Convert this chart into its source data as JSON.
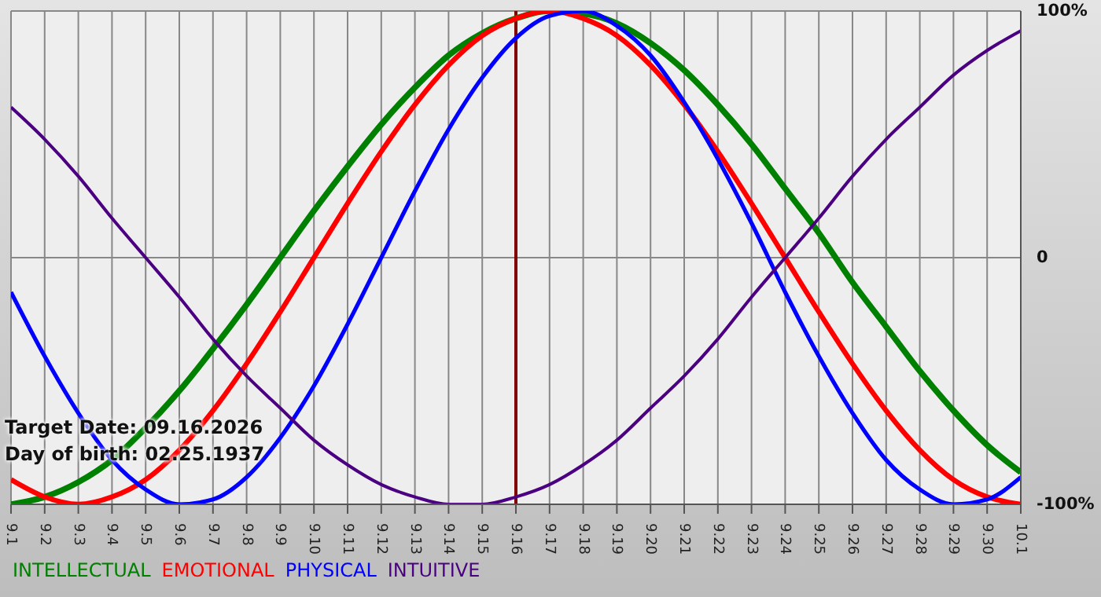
{
  "chart_data": {
    "type": "line",
    "categories": [
      "9.1",
      "9.2",
      "9.3",
      "9.4",
      "9.5",
      "9.6",
      "9.7",
      "9.8",
      "9.9",
      "9.10",
      "9.11",
      "9.12",
      "9.13",
      "9.14",
      "9.15",
      "9.16",
      "9.17",
      "9.18",
      "9.19",
      "9.20",
      "9.21",
      "9.22",
      "9.23",
      "9.24",
      "9.25",
      "9.26",
      "9.27",
      "9.28",
      "9.29",
      "9.30",
      "10.1"
    ],
    "series": [
      {
        "name": "INTELLECTUAL",
        "color": "#008000",
        "values": [
          -100,
          -97,
          -91,
          -82,
          -69,
          -54,
          -37,
          -19,
          0,
          19,
          37,
          54,
          69,
          82,
          91,
          97,
          100,
          99,
          95,
          87,
          76,
          62,
          46,
          28,
          10,
          -10,
          -28,
          -46,
          -62,
          -76,
          -87
        ]
      },
      {
        "name": "EMOTIONAL",
        "color": "#ff0000",
        "values": [
          -90,
          -97,
          -100,
          -97,
          -90,
          -78,
          -62,
          -43,
          -22,
          0,
          22,
          43,
          62,
          78,
          90,
          97,
          100,
          97,
          90,
          78,
          62,
          43,
          22,
          0,
          -22,
          -43,
          -62,
          -78,
          -90,
          -97,
          -100
        ]
      },
      {
        "name": "PHYSICAL",
        "color": "#0000ff",
        "values": [
          -14,
          -40,
          -63,
          -82,
          -94,
          -100,
          -98,
          -89,
          -73,
          -52,
          -27,
          0,
          27,
          52,
          73,
          89,
          98,
          100,
          94,
          82,
          63,
          40,
          14,
          -14,
          -40,
          -63,
          -82,
          -94,
          -100,
          -98,
          -89
        ]
      },
      {
        "name": "INTUITIVE",
        "color": "#4b0082",
        "values": [
          61,
          48,
          33,
          16,
          0,
          -16,
          -33,
          -48,
          -61,
          -74,
          -84,
          -92,
          -97,
          -100,
          -100,
          -97,
          -92,
          -84,
          -74,
          -61,
          -48,
          -33,
          -16,
          0,
          16,
          33,
          48,
          61,
          74,
          84,
          92
        ]
      }
    ],
    "ylim": [
      -100,
      100
    ],
    "yticks": [
      {
        "value": 100,
        "label": "100%"
      },
      {
        "value": 0,
        "label": "0"
      },
      {
        "value": -100,
        "label": "-100%"
      }
    ],
    "ref_lines": [
      {
        "axis": "x",
        "value": "9.16",
        "color": "#800000"
      }
    ],
    "annotations": [
      "Target Date: 09.16.2026",
      "Day of birth: 02.25.1937"
    ],
    "grid": true,
    "legend": "bottom left",
    "marker": "none",
    "line_style": "solid"
  }
}
